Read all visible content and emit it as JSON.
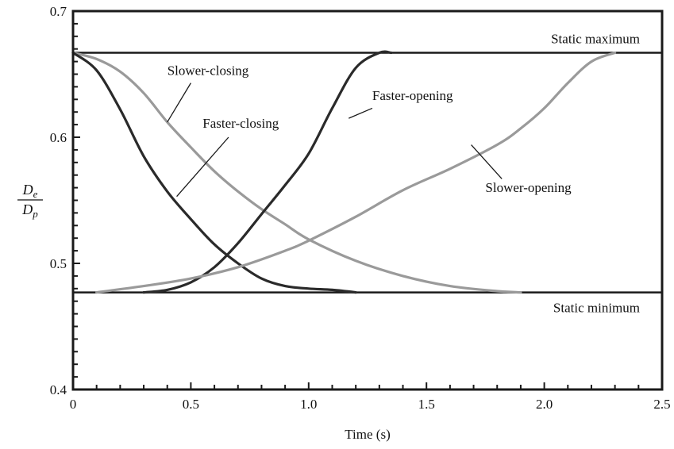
{
  "chart_data": {
    "type": "line",
    "xlabel": "Time (s)",
    "ylabel": {
      "numerator": "D",
      "numerator_sub": "e",
      "denominator": "D",
      "denominator_sub": "p"
    },
    "xlim": [
      0,
      2.5
    ],
    "ylim": [
      0.4,
      0.7
    ],
    "x_ticks": [
      0,
      0.5,
      1.0,
      1.5,
      2.0,
      2.5
    ],
    "x_tick_labels": [
      "0",
      "0.5",
      "1.0",
      "1.5",
      "2.0",
      "2.5"
    ],
    "y_ticks": [
      0.4,
      0.5,
      0.6,
      0.7
    ],
    "y_tick_labels": [
      "0.4",
      "0.5",
      "0.6",
      "0.7"
    ],
    "grid": false,
    "reference_lines": [
      {
        "label": "Static maximum",
        "y": 0.667
      },
      {
        "label": "Static minimum",
        "y": 0.477
      }
    ],
    "series": [
      {
        "name": "Slower-closing",
        "color": "#9a9a9a",
        "x": [
          0,
          0.1,
          0.2,
          0.3,
          0.4,
          0.5,
          0.6,
          0.7,
          0.8,
          0.9,
          1.0,
          1.2,
          1.4,
          1.6,
          1.8,
          1.9
        ],
        "y": [
          0.667,
          0.662,
          0.652,
          0.635,
          0.612,
          0.592,
          0.573,
          0.557,
          0.543,
          0.531,
          0.519,
          0.502,
          0.49,
          0.482,
          0.478,
          0.477
        ]
      },
      {
        "name": "Faster-closing",
        "color": "#2a2a2a",
        "x": [
          0,
          0.1,
          0.2,
          0.3,
          0.4,
          0.5,
          0.6,
          0.7,
          0.8,
          0.9,
          1.0,
          1.1,
          1.2
        ],
        "y": [
          0.667,
          0.653,
          0.622,
          0.585,
          0.557,
          0.535,
          0.515,
          0.5,
          0.488,
          0.482,
          0.48,
          0.479,
          0.477
        ]
      },
      {
        "name": "Faster-opening",
        "color": "#2a2a2a",
        "x": [
          0.3,
          0.4,
          0.5,
          0.6,
          0.7,
          0.8,
          0.9,
          1.0,
          1.1,
          1.2,
          1.3,
          1.35
        ],
        "y": [
          0.477,
          0.479,
          0.485,
          0.497,
          0.516,
          0.539,
          0.562,
          0.587,
          0.623,
          0.655,
          0.667,
          0.667
        ]
      },
      {
        "name": "Slower-opening",
        "color": "#9a9a9a",
        "x": [
          0.1,
          0.3,
          0.5,
          0.7,
          0.9,
          1.0,
          1.2,
          1.4,
          1.6,
          1.8,
          1.9,
          2.0,
          2.1,
          2.2,
          2.3
        ],
        "y": [
          0.477,
          0.482,
          0.488,
          0.497,
          0.51,
          0.518,
          0.537,
          0.558,
          0.575,
          0.594,
          0.607,
          0.623,
          0.643,
          0.66,
          0.667
        ]
      }
    ],
    "annotations": [
      {
        "text": "Slower-closing",
        "target": "Slower-closing"
      },
      {
        "text": "Faster-closing",
        "target": "Faster-closing"
      },
      {
        "text": "Faster-opening",
        "target": "Faster-opening"
      },
      {
        "text": "Slower-opening",
        "target": "Slower-opening"
      }
    ]
  }
}
